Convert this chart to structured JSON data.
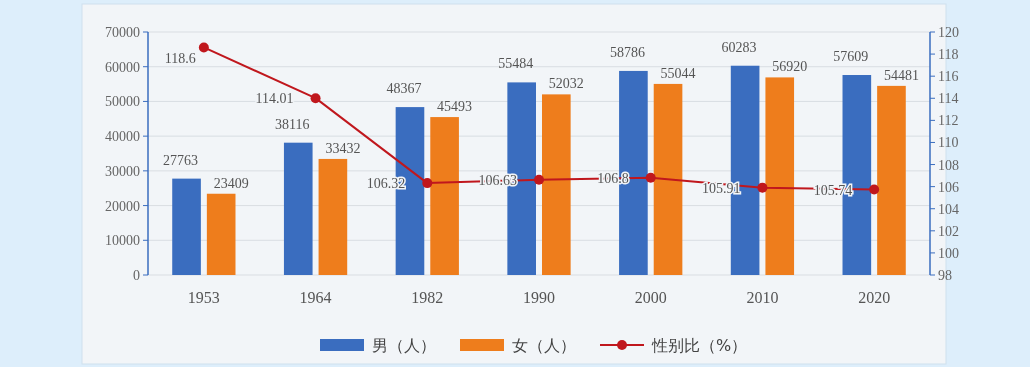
{
  "chart_data": {
    "type": "bar",
    "categories": [
      "1953",
      "1964",
      "1982",
      "1990",
      "2000",
      "2010",
      "2020"
    ],
    "series": [
      {
        "name": "男（人）",
        "color": "#3a6dbf",
        "values": [
          27763,
          38116,
          48367,
          55484,
          58786,
          60283,
          57609
        ]
      },
      {
        "name": "女（人）",
        "color": "#ee7d1c",
        "values": [
          23409,
          33432,
          45493,
          52032,
          55044,
          56920,
          54481
        ]
      },
      {
        "name": "性别比（%）",
        "type": "line",
        "axis": "y2",
        "color": "#c0171d",
        "marker": "circle",
        "values": [
          118.6,
          114.01,
          106.32,
          106.63,
          106.8,
          105.91,
          105.74
        ]
      }
    ],
    "ylim": [
      0,
      70000
    ],
    "yticks": [
      0,
      10000,
      20000,
      30000,
      40000,
      50000,
      60000,
      70000
    ],
    "y2lim": [
      98,
      120
    ],
    "y2ticks": [
      98,
      100,
      102,
      104,
      106,
      108,
      110,
      112,
      114,
      116,
      118,
      120
    ],
    "grid": "y",
    "legend": "bottom",
    "data_labels": true
  }
}
